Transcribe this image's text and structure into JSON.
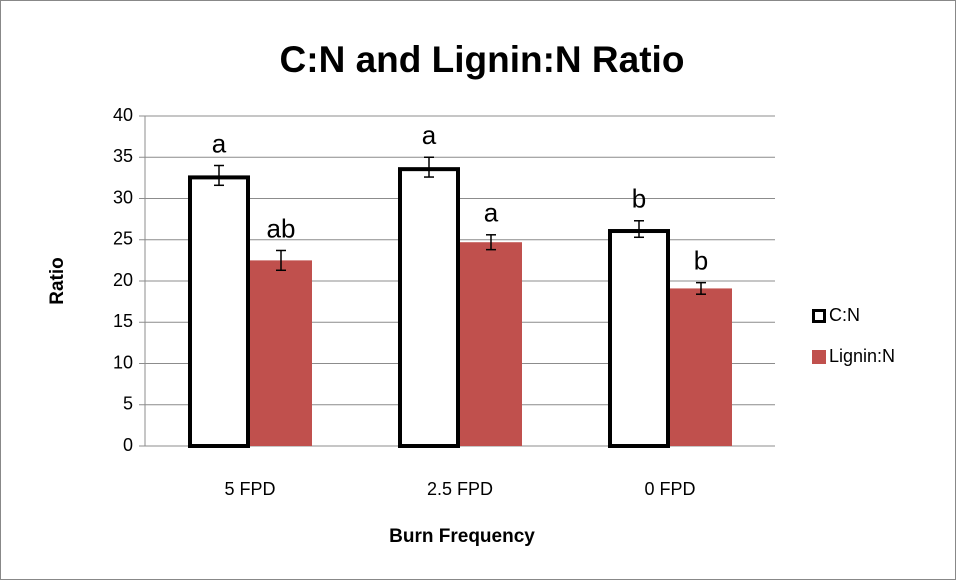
{
  "chart_data": {
    "type": "bar",
    "title": "C:N and Lignin:N Ratio",
    "xlabel": "Burn Frequency",
    "ylabel": "Ratio",
    "categories": [
      "5 FPD",
      "2.5 FPD",
      "0 FPD"
    ],
    "series": [
      {
        "name": "C:N",
        "color": "#ffffff",
        "edgecolor": "#000000",
        "values": [
          32.8,
          33.8,
          26.3
        ],
        "errors": [
          1.2,
          1.2,
          1.0
        ],
        "annotations": [
          "a",
          "a",
          "b"
        ]
      },
      {
        "name": "Lignin:N",
        "color": "#c0504d",
        "edgecolor": "#c0504d",
        "values": [
          22.5,
          24.7,
          19.1
        ],
        "errors": [
          1.2,
          0.9,
          0.7
        ],
        "annotations": [
          "ab",
          "a",
          "b"
        ]
      }
    ],
    "ylim": [
      0,
      40
    ],
    "yticks": [
      0,
      5,
      10,
      15,
      20,
      25,
      30,
      35,
      40
    ],
    "grid": true,
    "legend": "right"
  }
}
